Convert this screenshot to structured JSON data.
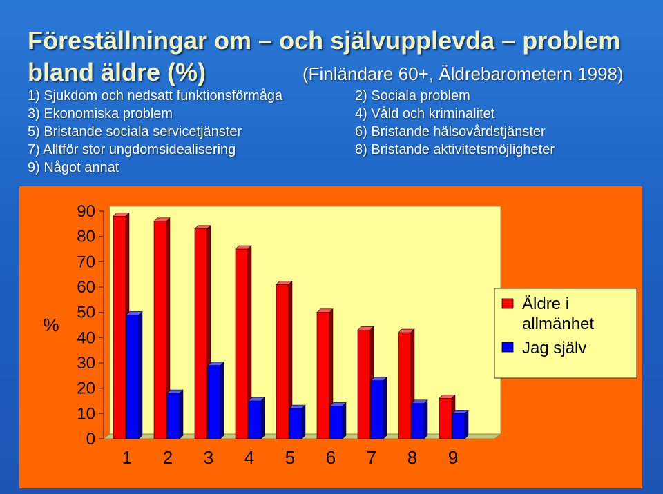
{
  "header": {
    "title_line1": "Föreställningar om – och självupplevda – problem",
    "title_line2": "bland äldre (%)",
    "subtitle": "(Finländare 60+, Äldrebarometern 1998)"
  },
  "categories_legend": [
    "1) Sjukdom och nedsatt funktionsförmåga",
    "2) Sociala problem",
    "3) Ekonomiska problem",
    "4) Våld och kriminalitet",
    "5) Bristande sociala servicetjänster",
    "6) Bristande hälsovårdstjänster",
    "7) Alltför stor ungdomsidealisering",
    "8) Bristande aktivitetsmöjligheter",
    "9) Något annat"
  ],
  "chart_data": {
    "type": "bar",
    "categories": [
      "1",
      "2",
      "3",
      "4",
      "5",
      "6",
      "7",
      "8",
      "9"
    ],
    "series": [
      {
        "name": "Äldre i allmänhet",
        "color": "#ff0000",
        "values": [
          88,
          86,
          83,
          75,
          61,
          50,
          43,
          42,
          16
        ]
      },
      {
        "name": "Jag själv",
        "color": "#0000ff",
        "values": [
          49,
          18,
          29,
          15,
          12,
          13,
          23,
          14,
          10
        ]
      }
    ],
    "ylabel": "%",
    "ylim": [
      0,
      90
    ],
    "yticks": [
      "0",
      "10",
      "20",
      "30",
      "40",
      "50",
      "60",
      "70",
      "80",
      "90"
    ],
    "legend_labels": [
      "Äldre i",
      "allmänhet",
      "Jag själv"
    ],
    "colors": {
      "panel": "#ff6600",
      "plot_area": "#ffff99"
    }
  }
}
